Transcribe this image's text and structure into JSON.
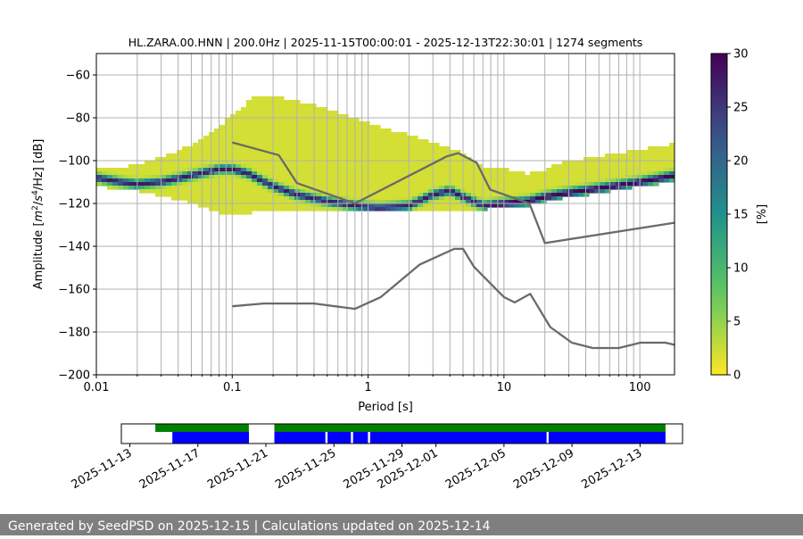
{
  "chart_data": [
    {
      "type": "heatmap",
      "title": "HL.ZARA.00.HNN | 200.0Hz | 2025-11-15T00:00:01 - 2025-12-13T22:30:01 | 1274 segments",
      "xlabel": "Period [s]",
      "ylabel_parts": [
        "Amplitude [",
        "m",
        "2",
        "/",
        "s",
        "4",
        "/Hz] [dB]"
      ],
      "x_scale": "log",
      "xlim": [
        0.01,
        180
      ],
      "ylim": [
        -200,
        -50
      ],
      "x_ticks": [
        {
          "value": 0.01,
          "label": "0.01"
        },
        {
          "value": 0.1,
          "label": "0.1"
        },
        {
          "value": 1,
          "label": "1"
        },
        {
          "value": 10,
          "label": "10"
        },
        {
          "value": 100,
          "label": "100"
        }
      ],
      "y_ticks": [
        {
          "value": -60,
          "label": "−60"
        },
        {
          "value": -80,
          "label": "−80"
        },
        {
          "value": -100,
          "label": "−100"
        },
        {
          "value": -120,
          "label": "−120"
        },
        {
          "value": -140,
          "label": "−140"
        },
        {
          "value": -160,
          "label": "−160"
        },
        {
          "value": -180,
          "label": "−180"
        },
        {
          "value": -200,
          "label": "−200"
        }
      ],
      "grid": true,
      "colormap": [
        "#fde725",
        "#5ec962",
        "#21918c",
        "#3b528b",
        "#440154"
      ],
      "colorbar": {
        "label": "[%]",
        "range": [
          0,
          30
        ],
        "ticks": [
          {
            "value": 0,
            "label": "0"
          },
          {
            "value": 5,
            "label": "5"
          },
          {
            "value": 10,
            "label": "10"
          },
          {
            "value": 15,
            "label": "15"
          },
          {
            "value": 20,
            "label": "20"
          },
          {
            "value": 25,
            "label": "25"
          },
          {
            "value": 30,
            "label": "30"
          }
        ]
      },
      "psd_mode": {
        "x": [
          0.01,
          0.015,
          0.02,
          0.03,
          0.05,
          0.08,
          0.1,
          0.13,
          0.2,
          0.3,
          0.5,
          0.8,
          1.2,
          2,
          3,
          4,
          5,
          7,
          10,
          15,
          20,
          30,
          50,
          100,
          180
        ],
        "y": [
          -108,
          -110,
          -111,
          -110,
          -107,
          -104,
          -104,
          -106,
          -112,
          -116,
          -119,
          -121,
          -122,
          -121,
          -116,
          -114,
          -117,
          -121,
          -120,
          -119,
          -117,
          -115,
          -113,
          -110,
          -107
        ]
      },
      "psd_band": {
        "x": [
          0.01,
          0.02,
          0.04,
          0.08,
          0.1,
          0.15,
          0.2,
          0.3,
          0.5,
          0.8,
          1.2,
          2,
          3,
          5,
          7,
          10,
          15,
          20,
          30,
          50,
          100,
          180
        ],
        "upper": [
          -104,
          -102,
          -96,
          -84,
          -78,
          -70,
          -70,
          -72,
          -76,
          -80,
          -84,
          -88,
          -92,
          -96,
          -103,
          -104,
          -106,
          -104,
          -100,
          -98,
          -95,
          -92
        ],
        "lower": [
          -112,
          -114,
          -118,
          -124,
          -125,
          -124,
          -124,
          -124,
          -124,
          -124,
          -124,
          -124,
          -124,
          -123,
          -123,
          -121,
          -121,
          -119,
          -117,
          -115,
          -112,
          -110
        ]
      },
      "series": [
        {
          "x": [
            0.1,
            0.22,
            0.3,
            0.8,
            3.8,
            4.6,
            6.3,
            7.9,
            15.4,
            20,
            180
          ],
          "values": [
            -91.5,
            -97.4,
            -110.5,
            -120,
            -98,
            -96.5,
            -101,
            -113.5,
            -120,
            -138.5,
            -129
          ]
        },
        {
          "x": [
            0.1,
            0.17,
            0.4,
            0.8,
            1.24,
            2.4,
            4.3,
            5,
            6,
            10,
            12,
            15.6,
            21.9,
            31.6,
            45,
            70,
            101,
            154,
            180
          ],
          "values": [
            -168,
            -166.7,
            -166.7,
            -169.2,
            -163.7,
            -148.5,
            -141.2,
            -141.2,
            -149.5,
            -163.7,
            -166.2,
            -162.2,
            -177.7,
            -185,
            -187.5,
            -187.5,
            -185,
            -185,
            -186
          ]
        }
      ]
    },
    {
      "type": "timeline",
      "x_ticks": [
        "2025-11-13",
        "2025-11-17",
        "2025-11-21",
        "2025-11-25",
        "2025-11-29",
        "2025-12-01",
        "2025-12-05",
        "2025-12-09",
        "2025-12-13"
      ],
      "tick_dates": [
        "2025-11-13",
        "2025-11-17",
        "2025-11-21",
        "2025-11-25",
        "2025-11-29",
        "2025-12-01",
        "2025-12-05",
        "2025-12-09",
        "2025-12-13"
      ],
      "xlim": [
        "2025-11-12T12:00",
        "2025-12-15T12:00"
      ],
      "rows": [
        {
          "color": "#008000",
          "segments": [
            [
              "2025-11-14T12:00",
              "2025-11-20T00:00"
            ],
            [
              "2025-11-21T12:00",
              "2025-12-14T12:00"
            ]
          ]
        },
        {
          "color": "#0000ff",
          "segments": [
            [
              "2025-11-15T12:00",
              "2025-11-20T00:00"
            ],
            [
              "2025-11-21T12:00",
              "2025-11-24T12:00"
            ],
            [
              "2025-11-24T15:00",
              "2025-11-26T00:00"
            ],
            [
              "2025-11-26T03:00",
              "2025-11-27T00:00"
            ],
            [
              "2025-11-27T03:00",
              "2025-12-07T12:00"
            ],
            [
              "2025-12-07T15:00",
              "2025-12-14T12:00"
            ]
          ]
        }
      ]
    }
  ],
  "footer": {
    "text": "Generated by SeedPSD on 2025-12-15 | Calculations updated on 2025-12-14"
  }
}
